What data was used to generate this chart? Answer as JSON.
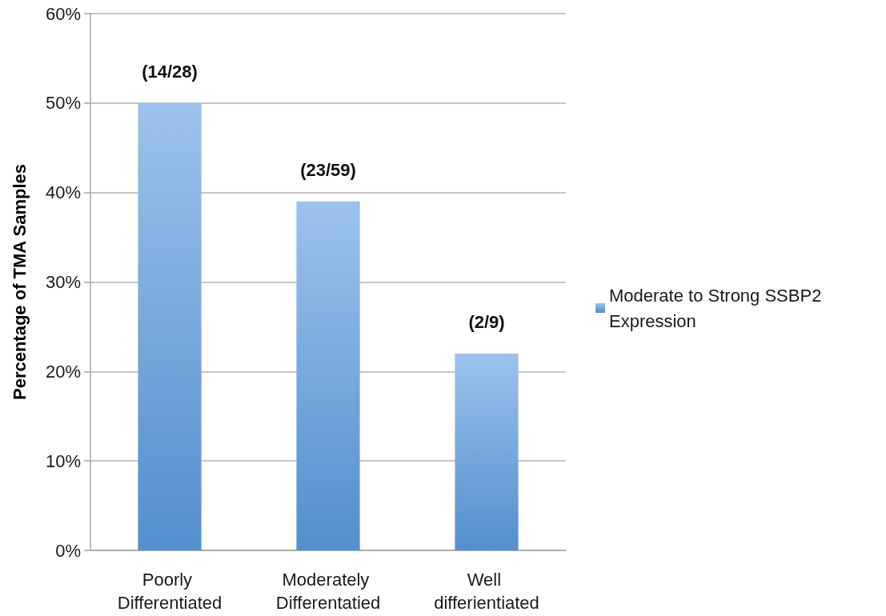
{
  "chart_data": {
    "type": "bar",
    "categories": [
      "Poorly Differentiated",
      "Moderately Differentatied",
      "Well differientiated"
    ],
    "series": [
      {
        "name": "Moderate to Strong SSBP2 Expression",
        "color": "#5a9ae0",
        "values": [
          50,
          39,
          22
        ],
        "value_labels": [
          "(14/28)",
          "(23/59)",
          "(2/9)"
        ]
      }
    ],
    "ylabel": "Percentage of TMA Samples",
    "ylim": [
      0,
      60
    ],
    "yticks": [
      {
        "value": 0,
        "label": "0%"
      },
      {
        "value": 10,
        "label": "10%"
      },
      {
        "value": 20,
        "label": "20%"
      },
      {
        "value": 30,
        "label": "30%"
      },
      {
        "value": 40,
        "label": "40%"
      },
      {
        "value": 50,
        "label": "50%"
      },
      {
        "value": 60,
        "label": "60%"
      }
    ],
    "grid": "y",
    "legend": "right"
  }
}
